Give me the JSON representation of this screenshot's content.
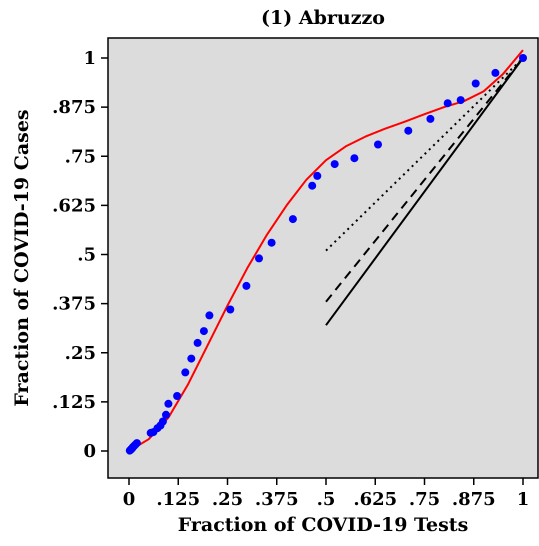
{
  "chart_data": {
    "type": "scatter",
    "title": "(1) Abruzzo",
    "xlabel": "Fraction of COVID-19 Tests",
    "ylabel": "Fraction of COVID-19 Cases",
    "xlim": [
      0,
      1
    ],
    "ylim": [
      0,
      1
    ],
    "x_ticks": [
      0,
      0.125,
      0.25,
      0.375,
      0.5,
      0.625,
      0.75,
      0.875,
      1
    ],
    "x_tick_labels": [
      "0",
      ".125",
      ".25",
      ".375",
      ".5",
      ".625",
      ".75",
      ".875",
      "1"
    ],
    "y_ticks": [
      0,
      0.125,
      0.25,
      0.375,
      0.5,
      0.625,
      0.75,
      0.875,
      1
    ],
    "y_tick_labels": [
      "0",
      ".125",
      ".25",
      ".375",
      ".5",
      ".625",
      ".75",
      ".875",
      "1"
    ],
    "grid": false,
    "background": "#dcdcdc",
    "series": [
      {
        "type": "scatter",
        "color": "#0000ff",
        "x": [
          0.002,
          0.004,
          0.006,
          0.008,
          0.01,
          0.013,
          0.016,
          0.02,
          0.055,
          0.062,
          0.072,
          0.08,
          0.086,
          0.094,
          0.1,
          0.122,
          0.143,
          0.158,
          0.174,
          0.19,
          0.204,
          0.257,
          0.298,
          0.33,
          0.362,
          0.416,
          0.465,
          0.478,
          0.522,
          0.572,
          0.632,
          0.709,
          0.765,
          0.809,
          0.842,
          0.88,
          0.93,
          1.0
        ],
        "y": [
          0.001,
          0.003,
          0.005,
          0.007,
          0.01,
          0.013,
          0.016,
          0.02,
          0.046,
          0.048,
          0.058,
          0.065,
          0.075,
          0.092,
          0.12,
          0.14,
          0.2,
          0.235,
          0.275,
          0.305,
          0.345,
          0.36,
          0.42,
          0.49,
          0.53,
          0.59,
          0.675,
          0.7,
          0.73,
          0.745,
          0.78,
          0.815,
          0.845,
          0.885,
          0.893,
          0.935,
          0.962,
          1.0
        ]
      },
      {
        "type": "line",
        "style": "solid",
        "color": "#ff0000",
        "x": [
          0,
          0.05,
          0.1,
          0.15,
          0.2,
          0.25,
          0.3,
          0.35,
          0.4,
          0.45,
          0.5,
          0.55,
          0.6,
          0.65,
          0.7,
          0.75,
          0.8,
          0.85,
          0.9,
          0.95,
          1.0
        ],
        "y": [
          0.0,
          0.03,
          0.085,
          0.17,
          0.27,
          0.37,
          0.465,
          0.55,
          0.625,
          0.69,
          0.74,
          0.775,
          0.8,
          0.82,
          0.838,
          0.857,
          0.875,
          0.89,
          0.915,
          0.96,
          1.02
        ]
      },
      {
        "type": "line",
        "style": "solid",
        "color": "#000000",
        "x": [
          0.5,
          1.0
        ],
        "y": [
          0.32,
          1.0
        ]
      },
      {
        "type": "line",
        "style": "dashed",
        "color": "#000000",
        "x": [
          0.5,
          1.0
        ],
        "y": [
          0.38,
          1.0
        ]
      },
      {
        "type": "line",
        "style": "dotted",
        "color": "#000000",
        "x": [
          0.5,
          1.0
        ],
        "y": [
          0.51,
          1.0
        ]
      }
    ]
  }
}
